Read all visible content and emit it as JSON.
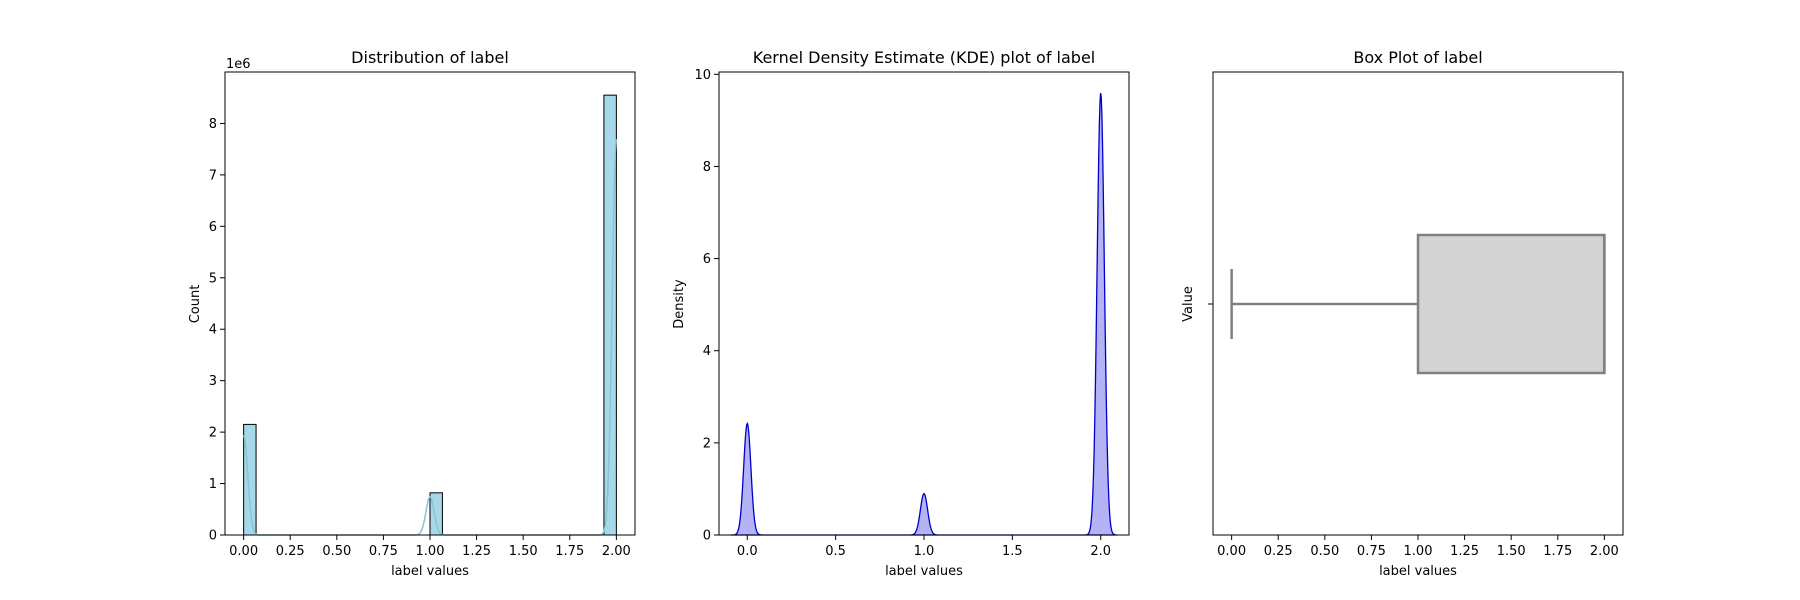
{
  "chart_data": [
    {
      "type": "bar",
      "title": "Distribution of label",
      "xlabel": "label values",
      "ylabel": "Count",
      "y_scale_label": "1e6",
      "xlim": [
        -0.1,
        2.1
      ],
      "ylim": [
        0,
        9.0
      ],
      "x_ticks": [
        0.0,
        0.25,
        0.5,
        0.75,
        1.0,
        1.25,
        1.5,
        1.75,
        2.0
      ],
      "x_tick_labels": [
        "0.00",
        "0.25",
        "0.50",
        "0.75",
        "1.00",
        "1.25",
        "1.50",
        "1.75",
        "2.00"
      ],
      "y_ticks": [
        0,
        1,
        2,
        3,
        4,
        5,
        6,
        7,
        8
      ],
      "y_tick_labels": [
        "0",
        "1",
        "2",
        "3",
        "4",
        "5",
        "6",
        "7",
        "8"
      ],
      "bars": [
        {
          "x_start": 0.0,
          "x_end": 0.0667,
          "value": 2.15
        },
        {
          "x_start": 1.0,
          "x_end": 1.0667,
          "value": 0.82
        },
        {
          "x_start": 1.9333,
          "x_end": 2.0,
          "value": 8.55
        }
      ],
      "kde_overlay": true,
      "colors": {
        "bar": "#a6d8ea",
        "edge": "#000000",
        "kde": "#87c4d6"
      },
      "grid": false
    },
    {
      "type": "area",
      "title": "Kernel Density Estimate (KDE) plot of label",
      "xlabel": "label values",
      "ylabel": "Density",
      "xlim": [
        -0.16,
        2.16
      ],
      "ylim": [
        0,
        10.05
      ],
      "x_ticks": [
        0.0,
        0.5,
        1.0,
        1.5,
        2.0
      ],
      "x_tick_labels": [
        "0.0",
        "0.5",
        "1.0",
        "1.5",
        "2.0"
      ],
      "y_ticks": [
        0,
        2,
        4,
        6,
        8,
        10
      ],
      "y_tick_labels": [
        "0",
        "2",
        "4",
        "6",
        "8",
        "10"
      ],
      "peaks": [
        {
          "x": 0.0,
          "density": 2.42
        },
        {
          "x": 1.0,
          "density": 0.9
        },
        {
          "x": 2.0,
          "density": 9.6
        }
      ],
      "colors": {
        "line": "#0000cc",
        "fill": "#b3b3f5"
      },
      "grid": false
    },
    {
      "type": "box",
      "title": "Box Plot of label",
      "xlabel": "label values",
      "ylabel": "Value",
      "xlim": [
        -0.1,
        2.1
      ],
      "x_ticks": [
        0.0,
        0.25,
        0.5,
        0.75,
        1.0,
        1.25,
        1.5,
        1.75,
        2.0
      ],
      "x_tick_labels": [
        "0.00",
        "0.25",
        "0.50",
        "0.75",
        "1.00",
        "1.25",
        "1.50",
        "1.75",
        "2.00"
      ],
      "box": {
        "whisker_low": 0.0,
        "q1": 1.0,
        "median": 2.0,
        "q3": 2.0,
        "whisker_high": 2.0
      },
      "colors": {
        "box_fill": "#d3d3d3",
        "box_edge": "#808080"
      },
      "grid": false
    }
  ]
}
